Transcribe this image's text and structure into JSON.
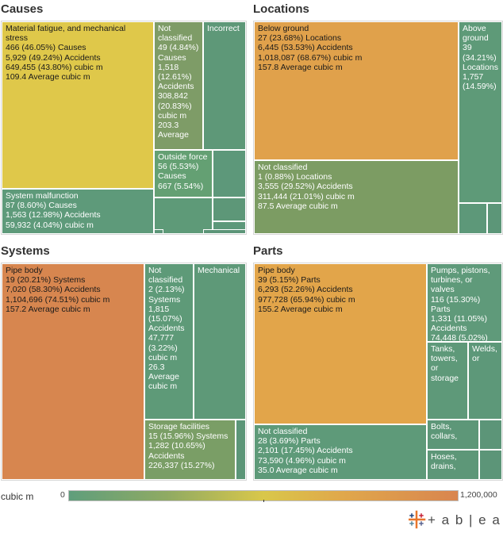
{
  "panels": [
    {
      "title": "Causes",
      "tiles": [
        {
          "color": "#dfc84a",
          "lines": [
            "Material fatigue, and mechanical stress",
            "466 (46.05%) Causes",
            "5,929 (49.24%) Accidents",
            "649,455 (43.80%) cubic m",
            "109.4 Average cubic m"
          ]
        },
        {
          "color": "#7e9c67",
          "lines": [
            "Not classified",
            "49 (4.84%) Causes",
            "1,518 (12.61%) Accidents",
            "308,842 (20.83%) cubic m",
            "203.3 Average"
          ]
        },
        {
          "color": "#5e9878",
          "lines": [
            "Incorrect"
          ]
        },
        {
          "color": "#64a073",
          "lines": [
            "Outside force",
            "56 (5.53%) Causes",
            "667 (5.54%)"
          ]
        },
        {
          "color": "#5e9a7a",
          "lines": [
            "System malfunction",
            "87 (8.60%) Causes",
            "1,563 (12.98%) Accidents",
            "59,932 (4.04%) cubic m"
          ]
        },
        {
          "color": "#5d987a",
          "lines": []
        },
        {
          "color": "#5e9a78",
          "lines": []
        },
        {
          "color": "#5d9778",
          "lines": []
        },
        {
          "color": "#5d987a",
          "lines": []
        },
        {
          "color": "#5c9678",
          "lines": []
        },
        {
          "color": "#5c9578",
          "lines": []
        }
      ]
    },
    {
      "title": "Locations",
      "tiles": [
        {
          "color": "#e0a14b",
          "lines": [
            "Below ground",
            "27 (23.68%) Locations",
            "6,445 (53.53%) Accidents",
            "1,018,087 (68.67%) cubic m",
            "157.8 Average cubic m"
          ]
        },
        {
          "color": "#5e9a78",
          "lines": [
            "Above ground",
            "39 (34.21%) Locations",
            "1,757 (14.59%)"
          ]
        },
        {
          "color": "#7c9c63",
          "lines": [
            "Not classified",
            "1 (0.88%) Locations",
            "3,555 (29.52%) Accidents",
            "311,444 (21.01%) cubic m",
            "87.5 Average cubic m"
          ]
        },
        {
          "color": "#5d9879",
          "lines": []
        },
        {
          "color": "#5c9678",
          "lines": []
        }
      ]
    },
    {
      "title": "Systems",
      "tiles": [
        {
          "color": "#d7864f",
          "lines": [
            "Pipe body",
            "19 (20.21%) Systems",
            "7,020 (58.30%) Accidents",
            "1,104,696 (74.51%) cubic m",
            "157.2 Average cubic m"
          ]
        },
        {
          "color": "#5e9a78",
          "lines": [
            "Not classified",
            "2 (2.13%) Systems",
            "1,815 (15.07%) Accidents",
            "47,777 (3.22%) cubic m",
            "26.3 Average cubic m"
          ]
        },
        {
          "color": "#5e9978",
          "lines": [
            "Mechanical"
          ]
        },
        {
          "color": "#7a9e66",
          "lines": [
            "Storage facilities",
            "15 (15.96%) Systems",
            "1,282 (10.65%) Accidents",
            "226,337 (15.27%)"
          ]
        },
        {
          "color": "#5c9678",
          "lines": []
        }
      ]
    },
    {
      "title": "Parts",
      "tiles": [
        {
          "color": "#e2a54a",
          "lines": [
            "Pipe body",
            "39 (5.15%) Parts",
            "6,293 (52.26%) Accidents",
            "977,728 (65.94%) cubic m",
            "155.2 Average cubic m"
          ]
        },
        {
          "color": "#5f9a7a",
          "lines": [
            "Pumps, pistons, turbines, or valves",
            "116 (15.30%) Parts",
            "1,331 (11.05%) Accidents",
            "74,448 (5.02%)"
          ]
        },
        {
          "color": "#5e9979",
          "lines": [
            "Tanks, towers, or storage"
          ]
        },
        {
          "color": "#5d9879",
          "lines": [
            "Welds, or"
          ]
        },
        {
          "color": "#5e9a79",
          "lines": [
            "Not classified",
            "28 (3.69%) Parts",
            "2,101 (17.45%) Accidents",
            "73,590 (4.96%) cubic m",
            "35.0 Average cubic m"
          ]
        },
        {
          "color": "#5d9778",
          "lines": [
            "Bolts, collars,"
          ]
        },
        {
          "color": "#5c9578",
          "lines": []
        },
        {
          "color": "#5d9778",
          "lines": [
            "Hoses, drains,"
          ]
        },
        {
          "color": "#5c9578",
          "lines": []
        }
      ]
    }
  ],
  "legend": {
    "label": "cubic m",
    "min": "0",
    "max": "1,200,000",
    "marker_value": 600000
  },
  "logo_text": "+ a b | e a u",
  "chart_data": [
    {
      "type": "heatmap",
      "title": "Causes",
      "size_measure": "count",
      "color_measure": "cubic m",
      "items": [
        {
          "name": "Material fatigue, and mechanical stress",
          "causes": 466,
          "accidents": 5929,
          "cubic_m": 649455,
          "average_cubic_m": 109.4
        },
        {
          "name": "Not classified",
          "causes": 49,
          "accidents": 1518,
          "cubic_m": 308842,
          "average_cubic_m": 203.3
        },
        {
          "name": "Incorrect"
        },
        {
          "name": "Outside force",
          "causes": 56,
          "accidents": 667
        },
        {
          "name": "System malfunction",
          "causes": 87,
          "accidents": 1563,
          "cubic_m": 59932
        }
      ]
    },
    {
      "type": "heatmap",
      "title": "Locations",
      "size_measure": "count",
      "color_measure": "cubic m",
      "items": [
        {
          "name": "Below ground",
          "locations": 27,
          "accidents": 6445,
          "cubic_m": 1018087,
          "average_cubic_m": 157.8
        },
        {
          "name": "Above ground",
          "locations": 39,
          "accidents": 1757
        },
        {
          "name": "Not classified",
          "locations": 1,
          "accidents": 3555,
          "cubic_m": 311444,
          "average_cubic_m": 87.5
        }
      ]
    },
    {
      "type": "heatmap",
      "title": "Systems",
      "size_measure": "count",
      "color_measure": "cubic m",
      "items": [
        {
          "name": "Pipe body",
          "systems": 19,
          "accidents": 7020,
          "cubic_m": 1104696,
          "average_cubic_m": 157.2
        },
        {
          "name": "Not classified",
          "systems": 2,
          "accidents": 1815,
          "cubic_m": 47777,
          "average_cubic_m": 26.3
        },
        {
          "name": "Mechanical"
        },
        {
          "name": "Storage facilities",
          "systems": 15,
          "accidents": 1282,
          "cubic_m": 226337
        }
      ]
    },
    {
      "type": "heatmap",
      "title": "Parts",
      "size_measure": "count",
      "color_measure": "cubic m",
      "items": [
        {
          "name": "Pipe body",
          "parts": 39,
          "accidents": 6293,
          "cubic_m": 977728,
          "average_cubic_m": 155.2
        },
        {
          "name": "Pumps, pistons, turbines, or valves",
          "parts": 116,
          "accidents": 1331,
          "cubic_m": 74448
        },
        {
          "name": "Tanks, towers, or storage"
        },
        {
          "name": "Welds, or"
        },
        {
          "name": "Not classified",
          "parts": 28,
          "accidents": 2101,
          "cubic_m": 73590,
          "average_cubic_m": 35.0
        },
        {
          "name": "Bolts, collars,"
        },
        {
          "name": "Hoses, drains,"
        }
      ]
    }
  ]
}
